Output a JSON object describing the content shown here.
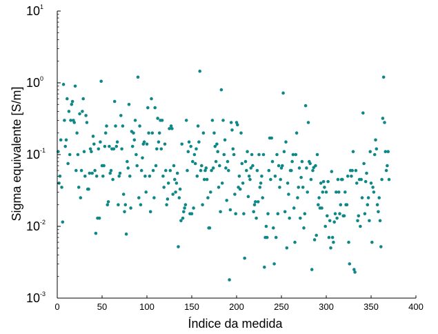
{
  "chart_data": {
    "type": "scatter",
    "title": "",
    "xlabel": "Índice da medida",
    "ylabel": "Sigma equivalente [S/m]",
    "xlim": [
      0,
      400
    ],
    "ylim": [
      0.001,
      10
    ],
    "yscale": "log",
    "x_ticks": [
      "0",
      "50",
      "100",
      "150",
      "200",
      "250",
      "300",
      "350",
      "400"
    ],
    "y_ticks": [
      {
        "base": "10",
        "exp": "-3"
      },
      {
        "base": "10",
        "exp": "-2"
      },
      {
        "base": "10",
        "exp": "-1"
      },
      {
        "base": "10",
        "exp": "0"
      },
      {
        "base": "10",
        "exp": "1"
      }
    ],
    "grid": false,
    "marker_color": "#0f8787",
    "points": [
      [
        1,
        0.11
      ],
      [
        2,
        0.04
      ],
      [
        3,
        0.05
      ],
      [
        4,
        0.16
      ],
      [
        5,
        0.035
      ],
      [
        6,
        0.0115
      ],
      [
        7,
        0.95
      ],
      [
        8,
        0.3
      ],
      [
        9,
        0.13
      ],
      [
        10,
        0.16
      ],
      [
        11,
        0.6
      ],
      [
        12,
        0.075
      ],
      [
        13,
        0.4
      ],
      [
        14,
        0.1
      ],
      [
        15,
        0.3
      ],
      [
        16,
        0.5
      ],
      [
        17,
        0.55
      ],
      [
        18,
        0.3
      ],
      [
        19,
        0.28
      ],
      [
        20,
        0.9
      ],
      [
        21,
        0.06
      ],
      [
        22,
        0.2
      ],
      [
        23,
        0.1
      ],
      [
        24,
        0.035
      ],
      [
        25,
        0.37
      ],
      [
        26,
        0.025
      ],
      [
        27,
        0.06
      ],
      [
        28,
        0.4
      ],
      [
        29,
        0.6
      ],
      [
        30,
        0.11
      ],
      [
        31,
        0.05
      ],
      [
        32,
        0.35
      ],
      [
        33,
        0.28
      ],
      [
        34,
        0.033
      ],
      [
        35,
        0.033
      ],
      [
        36,
        0.055
      ],
      [
        37,
        0.12
      ],
      [
        38,
        0.11
      ],
      [
        39,
        0.055
      ],
      [
        40,
        0.18
      ],
      [
        41,
        0.14
      ],
      [
        42,
        0.06
      ],
      [
        43,
        0.008
      ],
      [
        44,
        0.05
      ],
      [
        45,
        0.013
      ],
      [
        46,
        0.12
      ],
      [
        47,
        0.013
      ],
      [
        48,
        0.15
      ],
      [
        49,
        1.05
      ],
      [
        50,
        0.07
      ],
      [
        51,
        0.05
      ],
      [
        52,
        0.07
      ],
      [
        53,
        0.13
      ],
      [
        54,
        0.2
      ],
      [
        55,
        0.25
      ],
      [
        56,
        0.02
      ],
      [
        57,
        0.022
      ],
      [
        58,
        0.13
      ],
      [
        59,
        0.055
      ],
      [
        60,
        0.06
      ],
      [
        61,
        0.12
      ],
      [
        62,
        0.045
      ],
      [
        63,
        0.12
      ],
      [
        64,
        0.55
      ],
      [
        65,
        0.25
      ],
      [
        66,
        0.13
      ],
      [
        67,
        0.15
      ],
      [
        68,
        0.02
      ],
      [
        69,
        0.05
      ],
      [
        70,
        0.055
      ],
      [
        71,
        0.35
      ],
      [
        72,
        0.12
      ],
      [
        73,
        0.25
      ],
      [
        74,
        0.028
      ],
      [
        75,
        0.016
      ],
      [
        76,
        0.02
      ],
      [
        77,
        0.0078
      ],
      [
        78,
        0.08
      ],
      [
        79,
        0.065
      ],
      [
        80,
        0.5
      ],
      [
        81,
        0.05
      ],
      [
        82,
        0.018
      ],
      [
        83,
        0.21
      ],
      [
        84,
        0.13
      ],
      [
        85,
        0.2
      ],
      [
        86,
        0.16
      ],
      [
        87,
        0.3
      ],
      [
        88,
        0.1
      ],
      [
        89,
        0.07
      ],
      [
        90,
        1.2
      ],
      [
        91,
        0.025
      ],
      [
        92,
        0.25
      ],
      [
        93,
        0.02
      ],
      [
        94,
        0.06
      ],
      [
        95,
        0.09
      ],
      [
        96,
        0.14
      ],
      [
        97,
        0.15
      ],
      [
        98,
        0.05
      ],
      [
        99,
        0.03
      ],
      [
        100,
        0.14
      ],
      [
        101,
        0.45
      ],
      [
        102,
        0.2
      ],
      [
        103,
        0.05
      ],
      [
        104,
        0.016
      ],
      [
        105,
        0.6
      ],
      [
        106,
        0.2
      ],
      [
        107,
        0.06
      ],
      [
        108,
        0.025
      ],
      [
        109,
        0.45
      ],
      [
        110,
        0.07
      ],
      [
        111,
        0.12
      ],
      [
        112,
        0.32
      ],
      [
        113,
        0.15
      ],
      [
        114,
        0.2
      ],
      [
        115,
        0.3
      ],
      [
        116,
        0.12
      ],
      [
        117,
        0.3
      ],
      [
        118,
        0.05
      ],
      [
        119,
        0.035
      ],
      [
        120,
        0.14
      ],
      [
        121,
        0.06
      ],
      [
        122,
        0.02
      ],
      [
        123,
        0.024
      ],
      [
        124,
        0.04
      ],
      [
        125,
        0.23
      ],
      [
        126,
        0.06
      ],
      [
        127,
        0.25
      ],
      [
        128,
        0.23
      ],
      [
        129,
        0.028
      ],
      [
        130,
        0.07
      ],
      [
        131,
        0.045
      ],
      [
        132,
        0.03
      ],
      [
        133,
        0.04
      ],
      [
        134,
        0.055
      ],
      [
        135,
        0.0052
      ],
      [
        136,
        0.025
      ],
      [
        137,
        0.033
      ],
      [
        138,
        0.012
      ],
      [
        139,
        0.14
      ],
      [
        140,
        0.013
      ],
      [
        141,
        0.016
      ],
      [
        142,
        0.018
      ],
      [
        143,
        0.02
      ],
      [
        144,
        0.3
      ],
      [
        145,
        0.06
      ],
      [
        146,
        0.11
      ],
      [
        147,
        0.15
      ],
      [
        148,
        0.015
      ],
      [
        149,
        0.13
      ],
      [
        150,
        0.015
      ],
      [
        151,
        0.08
      ],
      [
        152,
        0.018
      ],
      [
        153,
        0.1
      ],
      [
        154,
        0.075
      ],
      [
        155,
        0.12
      ],
      [
        156,
        0.05
      ],
      [
        157,
        0.25
      ],
      [
        158,
        0.15
      ],
      [
        159,
        1.45
      ],
      [
        160,
        0.06
      ],
      [
        161,
        0.07
      ],
      [
        162,
        0.02
      ],
      [
        163,
        0.2
      ],
      [
        164,
        0.045
      ],
      [
        165,
        0.06
      ],
      [
        166,
        0.065
      ],
      [
        167,
        0.045
      ],
      [
        168,
        0.025
      ],
      [
        169,
        0.0095
      ],
      [
        170,
        0.0095
      ],
      [
        171,
        0.03
      ],
      [
        172,
        0.06
      ],
      [
        173,
        0.3
      ],
      [
        174,
        0.065
      ],
      [
        175,
        0.2
      ],
      [
        176,
        0.13
      ],
      [
        177,
        0.08
      ],
      [
        178,
        0.14
      ],
      [
        179,
        0.11
      ],
      [
        180,
        0.035
      ],
      [
        181,
        0.07
      ],
      [
        182,
        0.016
      ],
      [
        183,
        0.8
      ],
      [
        184,
        0.04
      ],
      [
        185,
        0.3
      ],
      [
        186,
        0.1
      ],
      [
        187,
        0.16
      ],
      [
        188,
        0.065
      ],
      [
        189,
        0.023
      ],
      [
        190,
        0.08
      ],
      [
        191,
        0.06
      ],
      [
        192,
        0.0018
      ],
      [
        193,
        0.017
      ],
      [
        194,
        0.28
      ],
      [
        195,
        0.22
      ],
      [
        196,
        0.12
      ],
      [
        197,
        0.1
      ],
      [
        198,
        0.028
      ],
      [
        199,
        0.015
      ],
      [
        200,
        0.28
      ],
      [
        201,
        0.26
      ],
      [
        202,
        0.035
      ],
      [
        203,
        0.05
      ],
      [
        204,
        0.033
      ],
      [
        205,
        0.2
      ],
      [
        206,
        0.075
      ],
      [
        207,
        0.04
      ],
      [
        208,
        0.015
      ],
      [
        209,
        0.0036
      ],
      [
        210,
        0.08
      ],
      [
        211,
        0.06
      ],
      [
        212,
        0.11
      ],
      [
        213,
        0.026
      ],
      [
        214,
        0.05
      ],
      [
        215,
        0.045
      ],
      [
        216,
        0.065
      ],
      [
        217,
        0.1
      ],
      [
        218,
        0.07
      ],
      [
        219,
        0.016
      ],
      [
        220,
        0.02
      ],
      [
        221,
        0.022
      ],
      [
        222,
        0.013
      ],
      [
        223,
        0.06
      ],
      [
        224,
        0.022
      ],
      [
        225,
        0.1
      ],
      [
        226,
        0.035
      ],
      [
        227,
        0.04
      ],
      [
        228,
        0.05
      ],
      [
        229,
        0.025
      ],
      [
        230,
        0.1
      ],
      [
        231,
        0.0027
      ],
      [
        232,
        0.007
      ],
      [
        233,
        0.01
      ],
      [
        234,
        0.007
      ],
      [
        235,
        0.015
      ],
      [
        236,
        0.06
      ],
      [
        237,
        0.17
      ],
      [
        238,
        0.045
      ],
      [
        239,
        0.17
      ],
      [
        240,
        0.08
      ],
      [
        241,
        0.0095
      ],
      [
        242,
        0.003
      ],
      [
        243,
        0.05
      ],
      [
        244,
        0.007
      ],
      [
        245,
        0.1
      ],
      [
        246,
        0.015
      ],
      [
        247,
        0.07
      ],
      [
        248,
        0.035
      ],
      [
        249,
        0.045
      ],
      [
        250,
        0.065
      ],
      [
        251,
        0.07
      ],
      [
        252,
        0.72
      ],
      [
        253,
        0.11
      ],
      [
        254,
        0.016
      ],
      [
        255,
        0.15
      ],
      [
        256,
        0.005
      ],
      [
        257,
        0.04
      ],
      [
        258,
        0.028
      ],
      [
        259,
        0.013
      ],
      [
        260,
        0.06
      ],
      [
        261,
        0.06
      ],
      [
        262,
        0.08
      ],
      [
        263,
        0.1
      ],
      [
        264,
        0.018
      ],
      [
        265,
        0.006
      ],
      [
        266,
        0.1
      ],
      [
        267,
        0.2
      ],
      [
        268,
        0.025
      ],
      [
        269,
        0.035
      ],
      [
        270,
        0.065
      ],
      [
        271,
        0.013
      ],
      [
        272,
        0.048
      ],
      [
        273,
        0.08
      ],
      [
        274,
        0.035
      ],
      [
        275,
        0.0095
      ],
      [
        276,
        0.015
      ],
      [
        277,
        0.48
      ],
      [
        278,
        0.065
      ],
      [
        279,
        0.03
      ],
      [
        280,
        0.28
      ],
      [
        281,
        0.08
      ],
      [
        282,
        0.075
      ],
      [
        283,
        0.045
      ],
      [
        284,
        0.0025
      ],
      [
        285,
        0.06
      ],
      [
        286,
        0.066
      ],
      [
        287,
        0.0065
      ],
      [
        288,
        0.07
      ],
      [
        289,
        0.0075
      ],
      [
        290,
        0.1
      ],
      [
        291,
        0.02
      ],
      [
        292,
        0.025
      ],
      [
        293,
        0.018
      ],
      [
        294,
        0.04
      ],
      [
        295,
        0.018
      ],
      [
        296,
        0.03
      ],
      [
        297,
        0.042
      ],
      [
        298,
        0.035
      ],
      [
        299,
        0.01
      ],
      [
        300,
        0.03
      ],
      [
        301,
        0.014
      ],
      [
        302,
        0.042
      ],
      [
        303,
        0.007
      ],
      [
        304,
        0.012
      ],
      [
        305,
        0.005
      ],
      [
        306,
        0.058
      ],
      [
        307,
        0.007
      ],
      [
        308,
        0.006
      ],
      [
        309,
        0.0115
      ],
      [
        310,
        0.015
      ],
      [
        311,
        0.03
      ],
      [
        312,
        0.013
      ],
      [
        313,
        0.045
      ],
      [
        314,
        0.03
      ],
      [
        315,
        0.015
      ],
      [
        316,
        0.02
      ],
      [
        317,
        0.045
      ],
      [
        318,
        0.045
      ],
      [
        319,
        0.014
      ],
      [
        320,
        0.014
      ],
      [
        321,
        0.03
      ],
      [
        322,
        0.02
      ],
      [
        323,
        0.02
      ],
      [
        324,
        0.05
      ],
      [
        325,
        0.006
      ],
      [
        326,
        0.003
      ],
      [
        327,
        0.06
      ],
      [
        328,
        0.05
      ],
      [
        329,
        0.06
      ],
      [
        330,
        0.11
      ],
      [
        331,
        0.0025
      ],
      [
        332,
        0.0023
      ],
      [
        333,
        0.06
      ],
      [
        334,
        0.04
      ],
      [
        335,
        0.012
      ],
      [
        336,
        0.014
      ],
      [
        337,
        0.045
      ],
      [
        338,
        0.01
      ],
      [
        339,
        0.045
      ],
      [
        340,
        0.025
      ],
      [
        341,
        0.38
      ],
      [
        342,
        0.075
      ],
      [
        343,
        0.015
      ],
      [
        344,
        0.042
      ],
      [
        345,
        0.055
      ],
      [
        346,
        0.02
      ],
      [
        347,
        0.025
      ],
      [
        348,
        0.012
      ],
      [
        349,
        0.11
      ],
      [
        350,
        0.04
      ],
      [
        351,
        0.006
      ],
      [
        352,
        0.035
      ],
      [
        353,
        0.03
      ],
      [
        354,
        0.1
      ],
      [
        355,
        0.16
      ],
      [
        356,
        0.12
      ],
      [
        357,
        0.02
      ],
      [
        358,
        0.016
      ],
      [
        359,
        0.025
      ],
      [
        360,
        0.012
      ],
      [
        361,
        0.0052
      ],
      [
        362,
        0.045
      ],
      [
        363,
        0.32
      ],
      [
        364,
        1.2
      ],
      [
        365,
        0.28
      ],
      [
        366,
        0.11
      ],
      [
        367,
        0.06
      ],
      [
        368,
        0.07
      ],
      [
        369,
        0.11
      ],
      [
        370,
        0.045
      ]
    ]
  }
}
